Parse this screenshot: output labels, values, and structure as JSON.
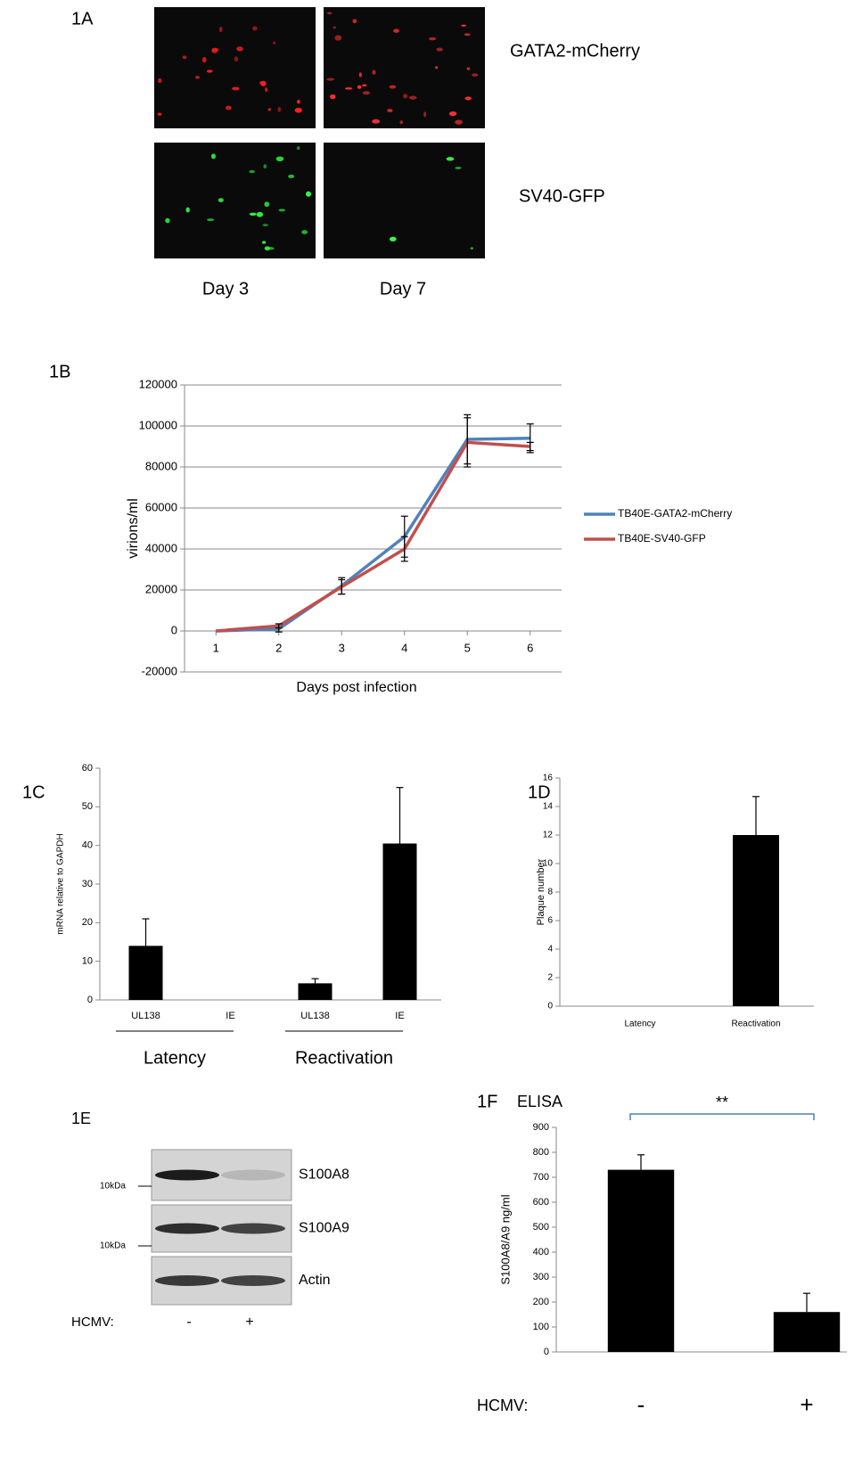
{
  "figure_a": {
    "label": "1A",
    "rows": [
      "GATA2-mCherry",
      "SV40-GFP"
    ],
    "columns": [
      "Day 3",
      "Day 7"
    ]
  },
  "figure_e": {
    "label": "1E",
    "proteins": [
      "S100A8",
      "S100A9",
      "Actin"
    ],
    "markers": [
      "10kDa",
      "10kDa"
    ],
    "condition_label": "HCMV:",
    "conditions": [
      "-",
      "+"
    ]
  },
  "chart_data": [
    {
      "type": "line",
      "label": "1B",
      "ylabel": "virions/ml",
      "xlabel": "Days post infection",
      "x": [
        1,
        2,
        3,
        4,
        5,
        6
      ],
      "xlim": [
        0.5,
        6.5
      ],
      "xticks": [
        1,
        2,
        3,
        4,
        5,
        6
      ],
      "ylim": [
        -20000,
        120000
      ],
      "yticks": [
        -20000,
        0,
        20000,
        40000,
        60000,
        80000,
        100000,
        120000
      ],
      "grid": true,
      "series": [
        {
          "name": "TB40E-GATA2-mCherry",
          "color": "#4f81bd",
          "values": [
            0,
            1000,
            22000,
            46000,
            93500,
            94000
          ],
          "errors": [
            0,
            1500,
            4000,
            10000,
            12000,
            7000
          ]
        },
        {
          "name": "TB40E-SV40-GFP",
          "color": "#c0504d",
          "values": [
            0,
            2500,
            21500,
            40000,
            92000,
            90000
          ],
          "errors": [
            0,
            1000,
            3500,
            6000,
            12000,
            2000
          ]
        }
      ]
    },
    {
      "type": "bar",
      "label": "1C",
      "ylabel": "mRNA relative to GAPDH",
      "color": "#000000",
      "categories": [
        "UL138",
        "IE",
        "UL138",
        "IE"
      ],
      "group_labels": [
        "Latency",
        "Reactivation"
      ],
      "values": [
        14,
        0,
        4.3,
        40.5
      ],
      "errors": [
        7,
        0,
        1.2,
        14.5
      ],
      "ylim": [
        0,
        60
      ],
      "yticks": [
        0,
        10,
        20,
        30,
        40,
        50,
        60
      ]
    },
    {
      "type": "bar",
      "label": "1D",
      "ylabel": "Plaque number",
      "color": "#000000",
      "categories": [
        "Latency",
        "Reactivation"
      ],
      "values": [
        0,
        12
      ],
      "errors": [
        0,
        2.7
      ],
      "ylim": [
        0,
        16
      ],
      "yticks": [
        0,
        2,
        4,
        6,
        8,
        10,
        12,
        14,
        16
      ]
    },
    {
      "type": "bar",
      "label": "1F",
      "title": "ELISA",
      "ylabel": "S100A8/A9 ng/ml",
      "xlabel": "HCMV:",
      "annotation": "**",
      "color": "#000000",
      "categories": [
        "-",
        "+"
      ],
      "values": [
        730,
        160
      ],
      "errors": [
        60,
        75
      ],
      "ylim": [
        0,
        900
      ],
      "yticks": [
        0,
        100,
        200,
        300,
        400,
        500,
        600,
        700,
        800,
        900
      ]
    }
  ]
}
